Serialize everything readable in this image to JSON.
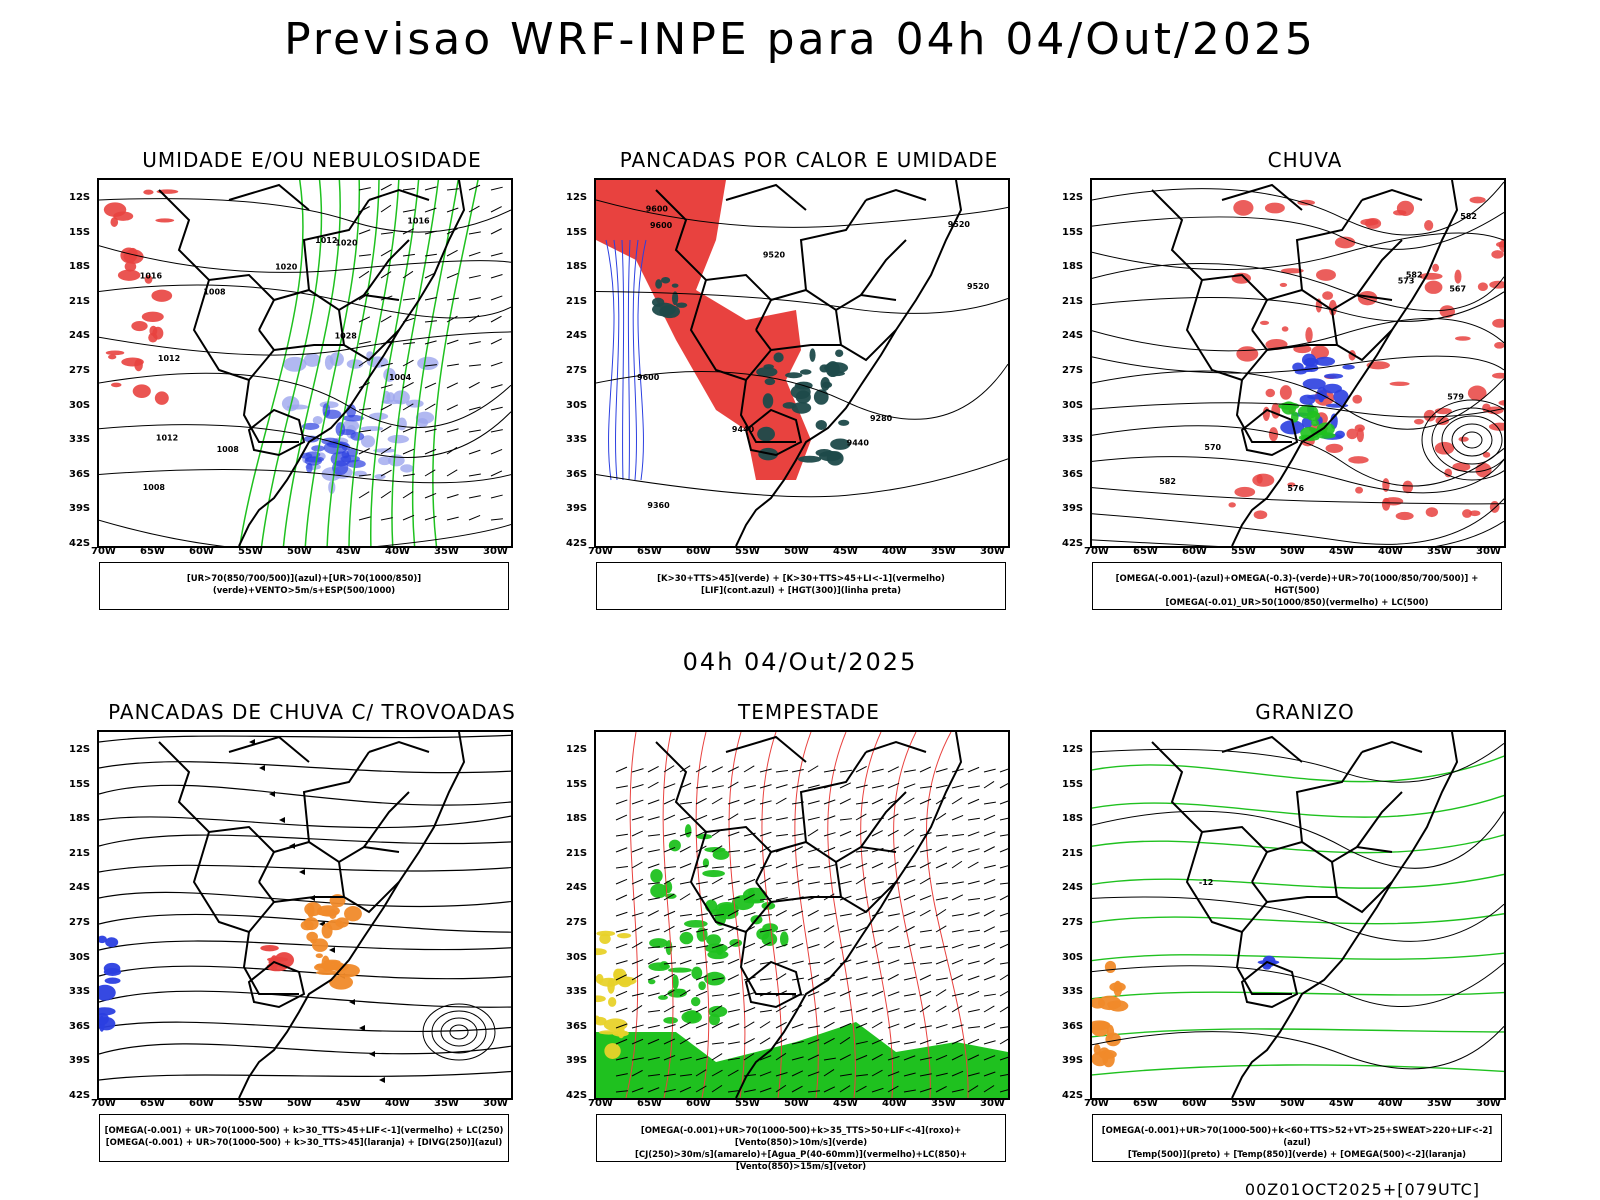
{
  "title": "Previsao WRF-INPE  para 04h 04/Out/2025",
  "subtitle": "04h 04/Out/2025",
  "footer": "00Z01OCT2025+[079UTC]",
  "lat_labels": [
    "12S",
    "15S",
    "18S",
    "21S",
    "24S",
    "27S",
    "30S",
    "33S",
    "36S",
    "39S",
    "42S"
  ],
  "lon_labels": [
    "70W",
    "65W",
    "60W",
    "55W",
    "50W",
    "45W",
    "40W",
    "35W",
    "30W"
  ],
  "colors": {
    "red": "#e8423f",
    "green": "#1fc11f",
    "blue": "#2b3fe0",
    "lavender": "#9da6ee",
    "teal": "#1e4a4a",
    "orange": "#f08a2a",
    "yellow": "#e8d22a",
    "black": "#000000"
  },
  "panels": [
    {
      "title": "UMIDADE E/OU NEBULOSIDADE",
      "legend": [
        "[UR>70(850/700/500)](azul)+[UR>70(1000/850)](verde)+VENTO>5m/s+ESP(500/1000)"
      ],
      "contour_labels": [
        "1016",
        "1008",
        "1012",
        "1020",
        "1008",
        "1012",
        "1016",
        "1028",
        "1020",
        "1012",
        "1004",
        "1008"
      ]
    },
    {
      "title": "PANCADAS POR CALOR E UMIDADE",
      "legend": [
        "[K>30+TTS>45](verde) + [K>30+TTS>45+LI<-1](vermelho)",
        "[LIF](cont.azul) + [HGT(300)](linha preta)"
      ],
      "contour_labels": [
        "9600",
        "9600",
        "9600",
        "9520",
        "9520",
        "9440",
        "9520",
        "9440",
        "9360",
        "9280"
      ]
    },
    {
      "title": "CHUVA",
      "legend": [
        "[OMEGA(-0.001)-(azul)+OMEGA(-0.3)-(verde)+UR>70(1000/850/700/500)] + HGT(500)",
        "[OMEGA(-0.01)_UR>50(1000/850)(vermelho) + LC(500)"
      ],
      "contour_labels": [
        "582",
        "582",
        "579",
        "576",
        "573",
        "570",
        "567",
        "582"
      ]
    },
    {
      "title": "PANCADAS DE CHUVA C/ TROVOADAS",
      "legend": [
        "[OMEGA(-0.001) + UR>70(1000-500) + k>30_TTS>45+LIF<-1](vermelho) + LC(250)",
        "[OMEGA(-0.001) + UR>70(1000-500) + k>30_TTS>45](laranja) + [DIVG(250)](azul)"
      ],
      "contour_labels": []
    },
    {
      "title": "TEMPESTADE",
      "legend": [
        "[OMEGA(-0.001)+UR>70(1000-500)+k>35_TTS>50+LIF<-4](roxo)+[Vento(850)>10m/s](verde)",
        "[CJ(250)>30m/s](amarelo)+[Agua_P(40-60mm)](vermelho)+LC(850)+[Vento(850)>15m/s](vetor)"
      ],
      "contour_labels": []
    },
    {
      "title": "GRANIZO",
      "legend": [
        "[OMEGA(-0.001)+UR>70(1000-500)+k<60+TTS>52+VT>25+SWEAT>220+LIF<-2](azul)",
        "[Temp(500)](preto) + [Temp(850)](verde) + [OMEGA(500)<-2](laranja)"
      ],
      "contour_labels": [
        "-12"
      ]
    }
  ]
}
